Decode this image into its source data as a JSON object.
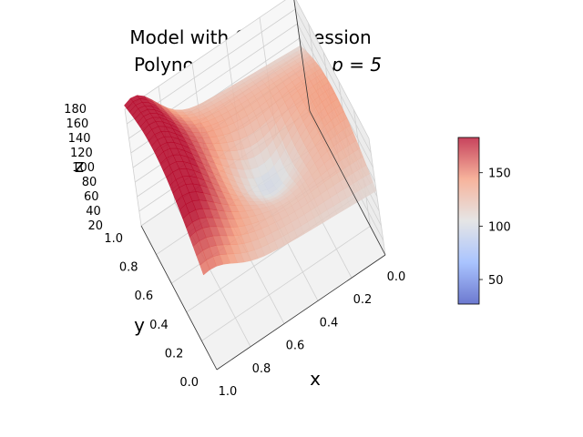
{
  "chart_data": {
    "type": "surface",
    "title_line1": "Model with OLS regression",
    "title_line2_prefix": "Polynomial of degree ",
    "title_line2_math": "p = 5",
    "xlabel": "x",
    "ylabel": "y",
    "zlabel": "z",
    "x_ticks": [
      "0.0",
      "0.2",
      "0.4",
      "0.6",
      "0.8",
      "1.0"
    ],
    "y_ticks": [
      "0.0",
      "0.2",
      "0.4",
      "0.6",
      "0.8",
      "1.0"
    ],
    "z_ticks": [
      "20",
      "40",
      "60",
      "80",
      "100",
      "120",
      "140",
      "160",
      "180"
    ],
    "xlim": [
      0,
      1
    ],
    "ylim": [
      0,
      1
    ],
    "zlim": [
      20,
      180
    ],
    "colormap": "coolwarm",
    "colorbar_ticks": [
      "50",
      "100",
      "150"
    ],
    "colorbar_range": [
      27,
      183
    ],
    "grid": true
  }
}
